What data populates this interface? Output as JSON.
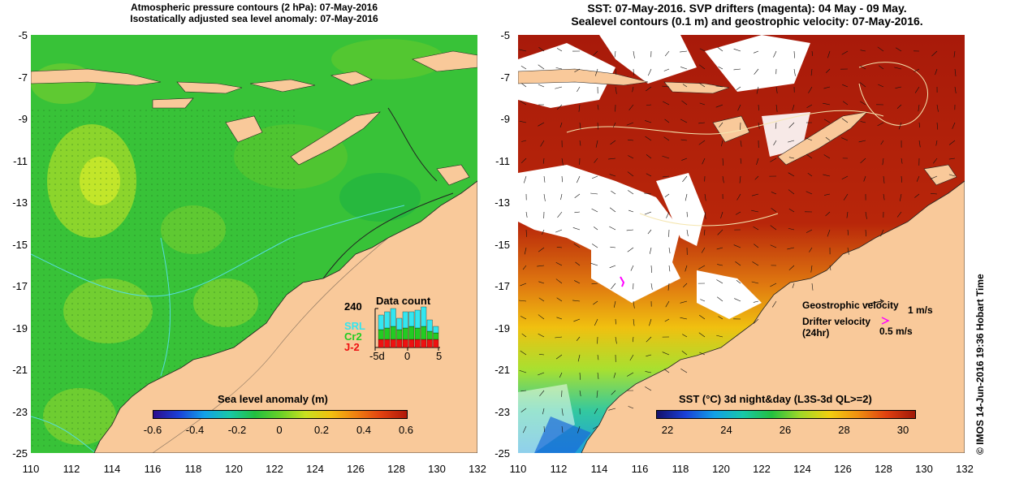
{
  "left_title": {
    "line1": "Atmospheric pressure contours (2 hPa): 07-May-2016",
    "line2": "Isostatically adjusted sea level anomaly: 07-May-2016"
  },
  "right_title": {
    "line1": "SST: 07-May-2016. SVP drifters (magenta): 04 May - 09 May.",
    "line2": "Sealevel contours (0.1 m) and geostrophic velocity: 07-May-2016."
  },
  "axes": {
    "y_ticks": [
      "-5",
      "-7",
      "-9",
      "-11",
      "-13",
      "-15",
      "-17",
      "-19",
      "-21",
      "-23",
      "-25"
    ],
    "x_ticks": [
      "110",
      "112",
      "114",
      "116",
      "118",
      "120",
      "122",
      "124",
      "126",
      "128",
      "130",
      "132"
    ]
  },
  "left_colorbar": {
    "title": "Sea level anomaly (m)",
    "ticks": [
      "-0.6",
      "-0.4",
      "-0.2",
      "0",
      "0.2",
      "0.4",
      "0.6"
    ]
  },
  "right_colorbar": {
    "title": "SST (°C) 3d night&day (L3S-3d QL>=2)",
    "ticks": [
      "22",
      "24",
      "26",
      "28",
      "30"
    ]
  },
  "data_count": {
    "title": "Data count",
    "max_label": "240",
    "series": [
      {
        "name": "SRL",
        "color": "#33e6f0"
      },
      {
        "name": "Cr2",
        "color": "#22cc22"
      },
      {
        "name": "J-2",
        "color": "#ee1111"
      }
    ],
    "x_ticks": [
      "-5d",
      "0",
      "5"
    ]
  },
  "velocity_legend": {
    "geo_label": "Geostrophic velocity",
    "geo_scale": "1 m/s",
    "drifter_label": "Drifter velocity",
    "drifter_sub": "(24hr)",
    "drifter_scale": "0.5 m/s"
  },
  "credit": "© IMOS 14-Jun-2016 19:36 Hobart Time",
  "colors": {
    "land": "#f9c99a",
    "sla_base": "#33c233",
    "sst_warm": "#a81a0a",
    "drifter": "#ff00ff"
  }
}
